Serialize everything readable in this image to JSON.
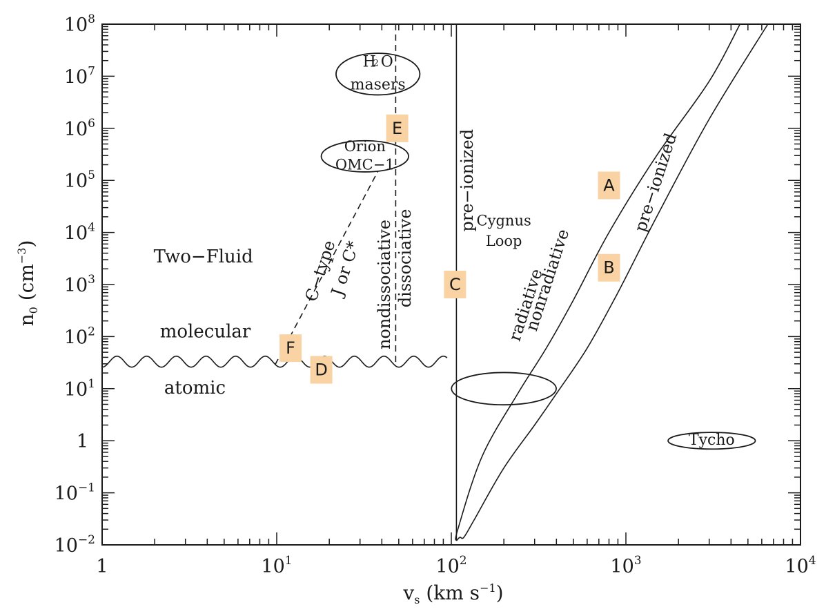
{
  "chart_data": {
    "type": "line",
    "title": "",
    "xlabel_main": "v",
    "xlabel_sub": "s",
    "xlabel_unit": " (km s",
    "xlabel_exp": "−1",
    "xlabel_close": ")",
    "ylabel_main": "n",
    "ylabel_sub": "0",
    "ylabel_unit": " (cm",
    "ylabel_exp": "−3",
    "ylabel_close": ")",
    "x_scale": "log",
    "y_scale": "log",
    "xlim": [
      1,
      10000
    ],
    "ylim": [
      0.01,
      100000000
    ],
    "grid": false,
    "x_ticks": [
      {
        "value": 1,
        "base": "1",
        "exp": ""
      },
      {
        "value": 10,
        "base": "10",
        "exp": "1"
      },
      {
        "value": 100,
        "base": "10",
        "exp": "2"
      },
      {
        "value": 1000,
        "base": "10",
        "exp": "3"
      },
      {
        "value": 10000,
        "base": "10",
        "exp": "4"
      }
    ],
    "y_ticks": [
      {
        "value": 0.01,
        "base": "10",
        "exp": "−2"
      },
      {
        "value": 0.1,
        "base": "10",
        "exp": "−1"
      },
      {
        "value": 1,
        "base": "1",
        "exp": ""
      },
      {
        "value": 10,
        "base": "10",
        "exp": "1"
      },
      {
        "value": 100,
        "base": "10",
        "exp": "2"
      },
      {
        "value": 1000,
        "base": "10",
        "exp": "3"
      },
      {
        "value": 10000,
        "base": "10",
        "exp": "4"
      },
      {
        "value": 100000,
        "base": "10",
        "exp": "5"
      },
      {
        "value": 1000000,
        "base": "10",
        "exp": "6"
      },
      {
        "value": 10000000,
        "base": "10",
        "exp": "7"
      },
      {
        "value": 100000000,
        "base": "10",
        "exp": "8"
      }
    ],
    "curves": [
      {
        "id": "vertical-solid-line",
        "style": "solid",
        "points": [
          [
            107,
            100000000
          ],
          [
            107,
            0.012
          ]
        ]
      },
      {
        "id": "vertical-dashed-line",
        "style": "dashed",
        "points": [
          [
            48,
            100000000
          ],
          [
            48,
            27
          ]
        ]
      },
      {
        "id": "c-type-dashed-line",
        "style": "dashed",
        "points": [
          [
            9.8,
            29
          ],
          [
            38,
            150000
          ]
        ]
      },
      {
        "id": "upper-boundary-curve",
        "style": "solid",
        "points": [
          [
            107,
            0.012
          ],
          [
            109,
            0.02
          ],
          [
            150,
            0.5
          ],
          [
            240,
            8
          ],
          [
            350,
            60
          ],
          [
            500,
            500
          ],
          [
            800,
            10000
          ],
          [
            1500,
            300000
          ],
          [
            3000,
            8000000
          ],
          [
            4500,
            100000000
          ]
        ]
      },
      {
        "id": "lower-boundary-curve",
        "style": "solid",
        "points": [
          [
            107,
            0.012
          ],
          [
            112,
            0.014
          ],
          [
            118,
            0.014
          ],
          [
            135,
            0.03
          ],
          [
            200,
            0.3
          ],
          [
            300,
            2
          ],
          [
            400,
            8
          ],
          [
            600,
            60
          ],
          [
            900,
            700
          ],
          [
            1500,
            20000
          ],
          [
            3000,
            1500000
          ],
          [
            6500,
            100000000
          ]
        ]
      },
      {
        "id": "molecular-atomic-boundary",
        "style": "wavy",
        "points": [
          [
            1,
            33
          ],
          [
            95,
            33
          ]
        ]
      }
    ],
    "ellipses": [
      {
        "id": "h2o-masers-region",
        "center": [
          38,
          11000000
        ],
        "width_decades": 0.48,
        "height_decades": 0.8
      },
      {
        "id": "orion-omc1-region",
        "center": [
          32,
          290000
        ],
        "width_decades": 0.5,
        "height_decades": 0.6
      },
      {
        "id": "cygnus-loop-region",
        "center": [
          200,
          10
        ],
        "width_decades": 0.6,
        "height_decades": 0.62
      },
      {
        "id": "tycho-region",
        "center": [
          3100,
          1
        ],
        "width_decades": 0.5,
        "height_decades": 0.32
      }
    ],
    "annotations": [
      {
        "id": "two-fluid-label",
        "text": "Two−Fluid",
        "x": 3.8,
        "y": 3300,
        "rotate": 0,
        "size": 26
      },
      {
        "id": "molecular-label",
        "text": "molecular",
        "x": 3.9,
        "y": 120,
        "rotate": 0,
        "size": 26
      },
      {
        "id": "atomic-label",
        "text": "atomic",
        "x": 3.4,
        "y": 10,
        "rotate": 0,
        "size": 26
      },
      {
        "id": "c-type-label",
        "text": "C−type",
        "x": 18,
        "y": 1800,
        "rotate": -72,
        "size": 24
      },
      {
        "id": "j-or-c-label",
        "text": "J or C*",
        "x": 25,
        "y": 2000,
        "rotate": -72,
        "size": 24
      },
      {
        "id": "nondissociative-label",
        "text": "nondissociative",
        "x": 42,
        "y": 1000,
        "rotate": -90,
        "size": 24
      },
      {
        "id": "dissociative-label",
        "text": "dissociative",
        "x": 55,
        "y": 3200,
        "rotate": -90,
        "size": 24
      },
      {
        "id": "pre-ionized-vertical-label",
        "text": "pre−ionized",
        "x": 125,
        "y": 100000,
        "rotate": -90,
        "size": 24
      },
      {
        "id": "radiative-label",
        "text": "radiative",
        "x": 270,
        "y": 400,
        "rotate": -72,
        "size": 24
      },
      {
        "id": "nonradiative-label",
        "text": "nonradiative",
        "x": 360,
        "y": 1200,
        "rotate": -72,
        "size": 24
      },
      {
        "id": "pre-ionized-diagonal-label",
        "text": "pre−ionized",
        "x": 1500,
        "y": 90000,
        "rotate": -72,
        "size": 24
      },
      {
        "id": "h2o-masers-label-line1",
        "text": "H O",
        "x": 38,
        "y": 18500000,
        "rotate": 0,
        "size": 22
      },
      {
        "id": "h2o-subscript-label",
        "text": "2",
        "x": 37,
        "y": 17500000,
        "rotate": 0,
        "size": 13
      },
      {
        "id": "h2o-masers-label-line2",
        "text": "masers",
        "x": 38,
        "y": 6700000,
        "rotate": 0,
        "size": 22
      },
      {
        "id": "orion-label-line1",
        "text": "Orion",
        "x": 32,
        "y": 430000,
        "rotate": 0,
        "size": 21
      },
      {
        "id": "orion-label-line2",
        "text": "OMC−1",
        "x": 32,
        "y": 190000,
        "rotate": 0,
        "size": 21
      },
      {
        "id": "cygnus-label-line1",
        "text": "Cygnus",
        "x": 200,
        "y": 16000,
        "rotate": 0,
        "size": 21
      },
      {
        "id": "cygnus-label-line2",
        "text": "Loop",
        "x": 200,
        "y": 6500,
        "rotate": 0,
        "size": 21
      },
      {
        "id": "tycho-label",
        "text": "Tycho",
        "x": 3100,
        "y": 1,
        "rotate": 0,
        "size": 22
      }
    ],
    "markers": [
      {
        "id": "marker-a",
        "label": "A",
        "x": 800,
        "y": 80000
      },
      {
        "id": "marker-b",
        "label": "B",
        "x": 800,
        "y": 2100
      },
      {
        "id": "marker-c",
        "label": "C",
        "x": 105,
        "y": 1000
      },
      {
        "id": "marker-d",
        "label": "D",
        "x": 18,
        "y": 23
      },
      {
        "id": "marker-e",
        "label": "E",
        "x": 49,
        "y": 1000000
      },
      {
        "id": "marker-f",
        "label": "F",
        "x": 12,
        "y": 60
      }
    ],
    "colors": {
      "ink": "#1a1a1a",
      "marker_fill": "#f9d3a4",
      "marker_text": "#111111"
    }
  }
}
